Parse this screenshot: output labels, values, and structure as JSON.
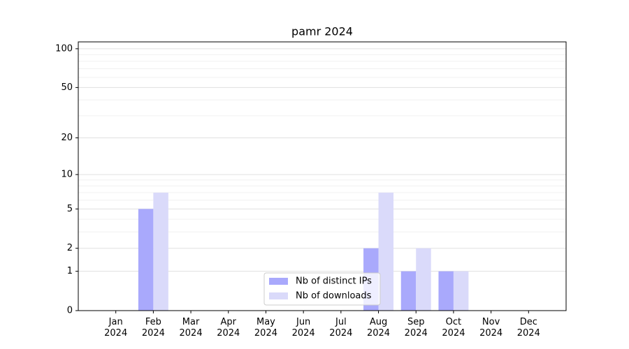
{
  "chart_data": {
    "type": "bar",
    "title": "pamr 2024",
    "categories": [
      "Jan\n2024",
      "Feb\n2024",
      "Mar\n2024",
      "Apr\n2024",
      "May\n2024",
      "Jun\n2024",
      "Jul\n2024",
      "Aug\n2024",
      "Sep\n2024",
      "Oct\n2024",
      "Nov\n2024",
      "Dec\n2024"
    ],
    "series": [
      {
        "name": "Nb of distinct IPs",
        "color": "#a9a9fc",
        "values": [
          0,
          5,
          0,
          0,
          0,
          0,
          0,
          2,
          1,
          1,
          0,
          0
        ]
      },
      {
        "name": "Nb of downloads",
        "color": "#dadafa",
        "values": [
          0,
          7,
          0,
          0,
          0,
          0,
          0,
          7,
          2,
          1,
          0,
          0
        ]
      }
    ],
    "y_scale": "log1p",
    "ylim": [
      0,
      113
    ],
    "yticks": [
      0,
      1,
      2,
      5,
      10,
      20,
      50,
      100
    ],
    "y_minor_ticks": [
      3,
      4,
      6,
      7,
      8,
      9,
      30,
      40,
      60,
      70,
      80,
      90
    ],
    "grid": true,
    "legend": "lower center"
  }
}
